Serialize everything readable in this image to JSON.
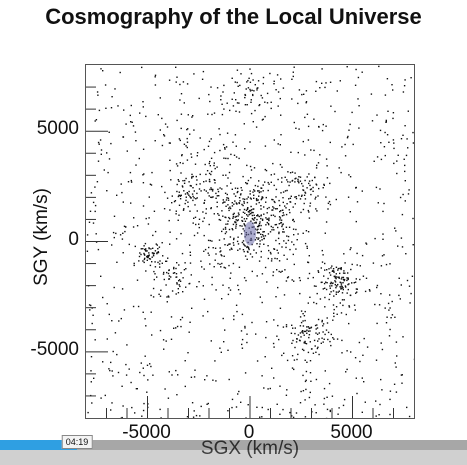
{
  "slide": {
    "title": "Cosmography of the Local Universe"
  },
  "chart_data": {
    "type": "scatter",
    "title": "Cosmography of the Local Universe",
    "xlabel": "SGX (km/s)",
    "ylabel": "SGY (km/s)",
    "xlim": [
      -8000,
      8000
    ],
    "ylim": [
      -8000,
      8000
    ],
    "xticks": [
      -5000,
      0,
      5000
    ],
    "yticks": [
      5000,
      0,
      -5000
    ],
    "xtick_labels": [
      "-5000",
      "0",
      "5000"
    ],
    "ytick_labels": [
      "5000",
      "0",
      "-5000"
    ],
    "grid": false,
    "point_color": "#111111",
    "center_marker_color": "#6a6aa8",
    "clusters": [
      {
        "x": 0,
        "y": 1000,
        "spread": 1200,
        "count": 420
      },
      {
        "x": -4900,
        "y": -600,
        "spread": 350,
        "count": 60
      },
      {
        "x": -3700,
        "y": -1600,
        "spread": 500,
        "count": 50
      },
      {
        "x": 4300,
        "y": -1800,
        "spread": 500,
        "count": 110
      },
      {
        "x": 2800,
        "y": -4300,
        "spread": 600,
        "count": 90
      },
      {
        "x": -2800,
        "y": 2200,
        "spread": 700,
        "count": 90
      },
      {
        "x": 2400,
        "y": 2300,
        "spread": 800,
        "count": 70
      },
      {
        "x": 0,
        "y": 6900,
        "spread": 600,
        "count": 50
      },
      {
        "x": -1800,
        "y": 4000,
        "spread": 800,
        "count": 40
      }
    ],
    "background_points": 900
  },
  "player": {
    "time_label": "04:19",
    "progress": 0.165
  }
}
